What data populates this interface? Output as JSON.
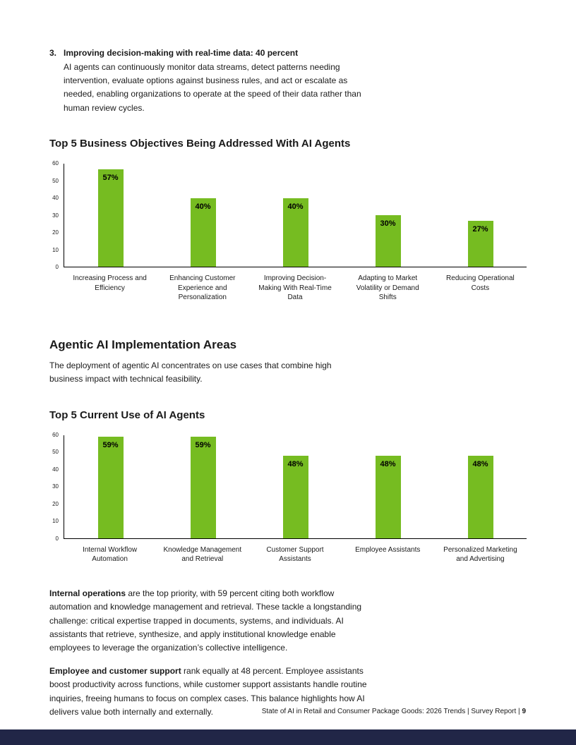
{
  "colors": {
    "bar_green": "#76BC21",
    "footer_bar": "#212647"
  },
  "list_item": {
    "number": "3.",
    "title": "Improving decision-making with real-time data: 40 percent",
    "body": "AI agents can continuously monitor data streams, detect patterns needing intervention, evaluate options against business rules, and act or escalate as needed, enabling organizations to operate at the speed of their data rather than human review cycles."
  },
  "section": {
    "heading": "Agentic AI Implementation Areas",
    "body": "The deployment of agentic AI concentrates on use cases that combine high business impact with technical feasibility."
  },
  "paragraphs": [
    {
      "lead": "Internal operations",
      "rest": " are the top priority, with 59 percent citing both workflow automation and knowledge management and retrieval. These tackle a longstanding challenge: critical expertise trapped in documents, systems, and individuals. AI assistants that retrieve, synthesize, and apply institutional knowledge enable employees to leverage the organization’s collective intelligence."
    },
    {
      "lead": "Employee and customer support",
      "rest": " rank equally at 48 percent. Employee assistants boost productivity across functions, while customer support assistants handle routine inquiries, freeing humans to focus on complex cases. This balance highlights how AI delivers value both internally and externally."
    }
  ],
  "footer": {
    "text": "State of AI in Retail and Consumer Package Goods: 2026 Trends | Survey Report |",
    "page": "9"
  },
  "chart_data": [
    {
      "type": "bar",
      "title": "Top 5 Business Objectives Being Addressed With AI Agents",
      "categories": [
        "Increasing Process and Efficiency",
        "Enhancing Customer Experience and Personalization",
        "Improving Decision-Making With Real-Time Data",
        "Adapting to Market Volatility or Demand Shifts",
        "Reducing Operational Costs"
      ],
      "values": [
        57,
        40,
        40,
        30,
        27
      ],
      "bar_labels": [
        "57%",
        "40%",
        "40%",
        "30%",
        "27%"
      ],
      "ylim": [
        0,
        60
      ],
      "yticks": [
        0,
        10,
        20,
        30,
        40,
        50,
        60
      ],
      "xlabel": "",
      "ylabel": "",
      "grid": false,
      "legend": false,
      "bar_color": "#76BC21"
    },
    {
      "type": "bar",
      "title": "Top 5 Current Use of AI Agents",
      "categories": [
        "Internal Workflow Automation",
        "Knowledge Management and Retrieval",
        "Customer Support Assistants",
        "Employee Assistants",
        "Personalized Marketing and Advertising"
      ],
      "values": [
        59,
        59,
        48,
        48,
        48
      ],
      "bar_labels": [
        "59%",
        "59%",
        "48%",
        "48%",
        "48%"
      ],
      "ylim": [
        0,
        60
      ],
      "yticks": [
        0,
        10,
        20,
        30,
        40,
        50,
        60
      ],
      "xlabel": "",
      "ylabel": "",
      "grid": false,
      "legend": false,
      "bar_color": "#76BC21"
    }
  ]
}
